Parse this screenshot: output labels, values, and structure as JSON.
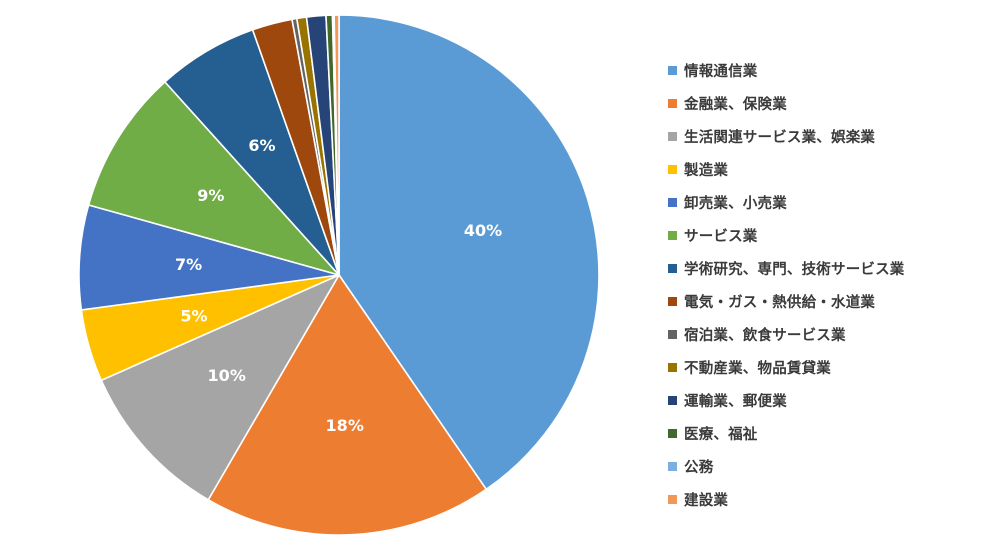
{
  "chart_data": {
    "type": "pie",
    "categories": [
      "情報通信業",
      "金融業、保険業",
      "生活関連サービス業、娯楽業",
      "製造業",
      "卸売業、小売業",
      "サービス業",
      "学術研究、専門、技術サービス業",
      "電気・ガス・熱供給・水道業",
      "宿泊業、飲食サービス業",
      "不動産業、物品賃貸業",
      "運輸業、郵便業",
      "医療、福祉",
      "公務",
      "建設業"
    ],
    "values": [
      40.5,
      18.0,
      10.0,
      4.5,
      6.5,
      9.0,
      6.3,
      2.5,
      0.3,
      0.6,
      1.2,
      0.4,
      0.1,
      0.3
    ],
    "data_labels": [
      "40%",
      "18%",
      "10%",
      "5%",
      "7%",
      "9%",
      "6%",
      "",
      "",
      "",
      "",
      "",
      "",
      ""
    ],
    "colors": [
      "#5b9bd5",
      "#ed7d31",
      "#a5a5a5",
      "#ffc000",
      "#4472c4",
      "#70ad47",
      "#255e91",
      "#9e480e",
      "#636363",
      "#997300",
      "#264478",
      "#43682b",
      "#7cafdd",
      "#f1975a"
    ],
    "start_angle_deg": 0,
    "direction": "clockwise",
    "legend_position": "right"
  }
}
